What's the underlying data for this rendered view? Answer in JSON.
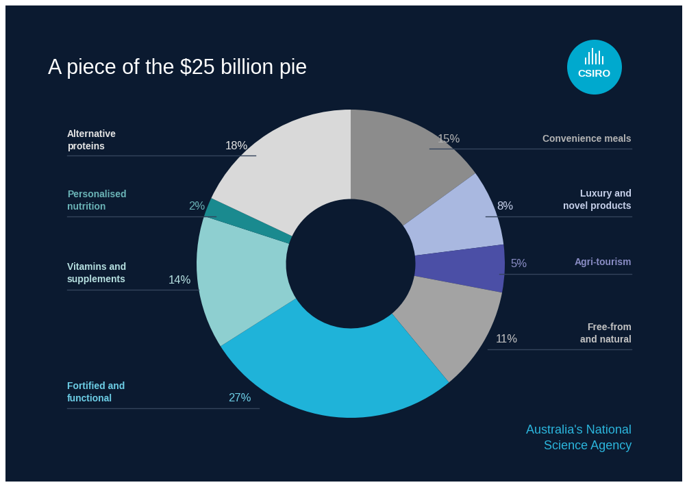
{
  "chart_data": {
    "type": "pie",
    "title": "A piece of the $25 billion pie",
    "categories": [
      "Convenience meals",
      "Luxury and\nnovel products",
      "Agri-tourism",
      "Free-from\nand natural",
      "Fortified and\nfunctional",
      "Vitamins and\nsupplements",
      "Personalised\nnutrition",
      "Alternative\nproteins"
    ],
    "values": [
      15,
      8,
      5,
      11,
      27,
      14,
      2,
      18
    ],
    "value_labels": [
      "15%",
      "8%",
      "5%",
      "11%",
      "27%",
      "14%",
      "2%",
      "18%"
    ],
    "colors": [
      "#8c8c8c",
      "#a9b8e0",
      "#4b4fa6",
      "#a3a3a3",
      "#1fb3d9",
      "#8ecfd0",
      "#1a8a8f",
      "#d9d9d9"
    ],
    "data_labels": true,
    "annotations": [
      "CSIRO",
      "Australia's National\nScience Agency"
    ]
  }
}
